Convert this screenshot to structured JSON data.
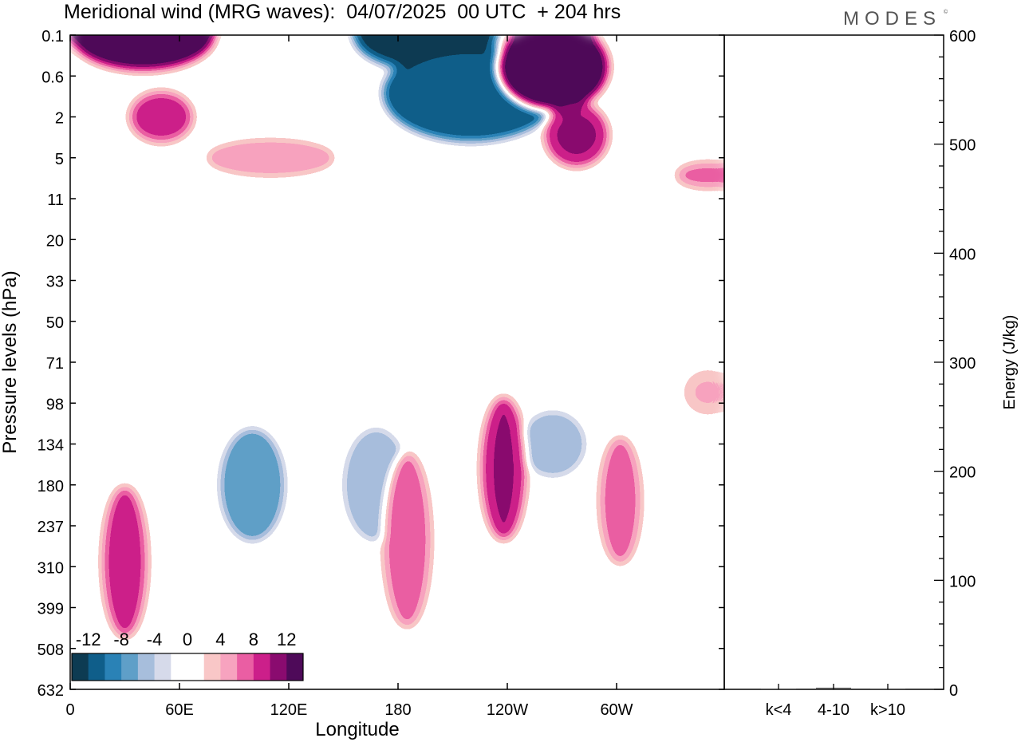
{
  "header": {
    "title": "Meridional wind (MRG waves):  04/07/2025  00 UTC  + 204 hrs",
    "brand": "MODES",
    "brand_mark": "©"
  },
  "chart_data": [
    {
      "type": "heatmap",
      "title": "Meridional wind (MRG waves):  04/07/2025  00 UTC  + 204 hrs",
      "xlabel": "Longitude",
      "ylabel": "Pressure levels (hPa)",
      "x_ticks": [
        "0",
        "60E",
        "120E",
        "180",
        "120W",
        "60W"
      ],
      "y_ticks": [
        "0.1",
        "0.6",
        "2",
        "5",
        "11",
        "20",
        "33",
        "50",
        "71",
        "98",
        "134",
        "180",
        "237",
        "310",
        "399",
        "508",
        "632"
      ],
      "colorbar": {
        "labels": [
          "-12",
          "-8",
          "-4",
          "0",
          "4",
          "8",
          "12"
        ],
        "colors": [
          "#0d3b52",
          "#0f5e8a",
          "#2a82b6",
          "#5f9fc8",
          "#a7bedc",
          "#d6daea",
          "#ffffff",
          "#ffffff",
          "#f9c7c7",
          "#f7a3bf",
          "#ea5ea3",
          "#cc1f8a",
          "#8a0b6f",
          "#4e0a59"
        ]
      },
      "features": [
        {
          "sign": "pos",
          "lon": 40,
          "level": "0.1",
          "magnitude": 14
        },
        {
          "sign": "pos",
          "lon": 50,
          "level": "2",
          "magnitude": 9
        },
        {
          "sign": "neg",
          "lon": 195,
          "level": "0.1",
          "magnitude": 13
        },
        {
          "sign": "neg",
          "lon": 220,
          "level": "1",
          "magnitude": 12
        },
        {
          "sign": "pos",
          "lon": 265,
          "level": "0.4",
          "magnitude": 14
        },
        {
          "sign": "pos",
          "lon": 278,
          "level": "3",
          "magnitude": 10
        },
        {
          "sign": "pos",
          "lon": 110,
          "level": "5",
          "magnitude": 6
        },
        {
          "sign": "pos",
          "lon": 350,
          "level": "7",
          "magnitude": 7
        },
        {
          "sign": "neg",
          "lon": 100,
          "level": "180",
          "magnitude": 8
        },
        {
          "sign": "neg",
          "lon": 168,
          "level": "180",
          "magnitude": 6
        },
        {
          "sign": "neg",
          "lon": 265,
          "level": "134",
          "magnitude": 6
        },
        {
          "sign": "pos",
          "lon": 30,
          "level": "300",
          "magnitude": 9
        },
        {
          "sign": "pos",
          "lon": 185,
          "level": "260",
          "magnitude": 7
        },
        {
          "sign": "pos",
          "lon": 238,
          "level": "160",
          "magnitude": 10
        },
        {
          "sign": "pos",
          "lon": 302,
          "level": "200",
          "magnitude": 7
        },
        {
          "sign": "pos",
          "lon": 350,
          "level": "90",
          "magnitude": 4
        }
      ]
    },
    {
      "type": "bar",
      "categories": [
        "k<4",
        "4-10",
        "k>10"
      ],
      "values": [
        0.5,
        1.5,
        0.3
      ],
      "ylabel": "Energy (J/kg)",
      "ylim": [
        0,
        600
      ],
      "y_ticks": [
        "0",
        "100",
        "200",
        "300",
        "400",
        "500",
        "600"
      ]
    }
  ]
}
